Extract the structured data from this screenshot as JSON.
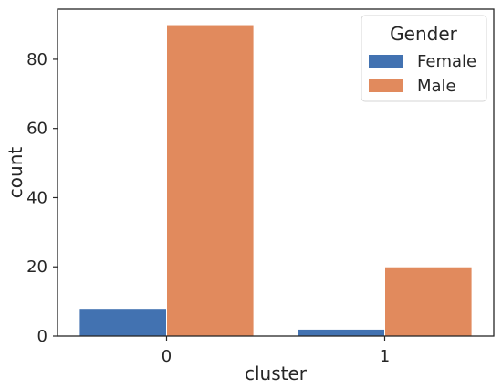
{
  "chart_data": {
    "type": "bar",
    "title": "",
    "xlabel": "cluster",
    "ylabel": "count",
    "categories": [
      "0",
      "1"
    ],
    "series": [
      {
        "name": "Female",
        "values": [
          8,
          2
        ],
        "color": "#4272b1"
      },
      {
        "name": "Male",
        "values": [
          90,
          20
        ],
        "color": "#e18a5d"
      }
    ],
    "ylim": [
      0,
      94.5
    ],
    "yticks": [
      0,
      20,
      40,
      60,
      80
    ],
    "grid": false,
    "legend": {
      "title": "Gender",
      "position": "top-right"
    }
  }
}
